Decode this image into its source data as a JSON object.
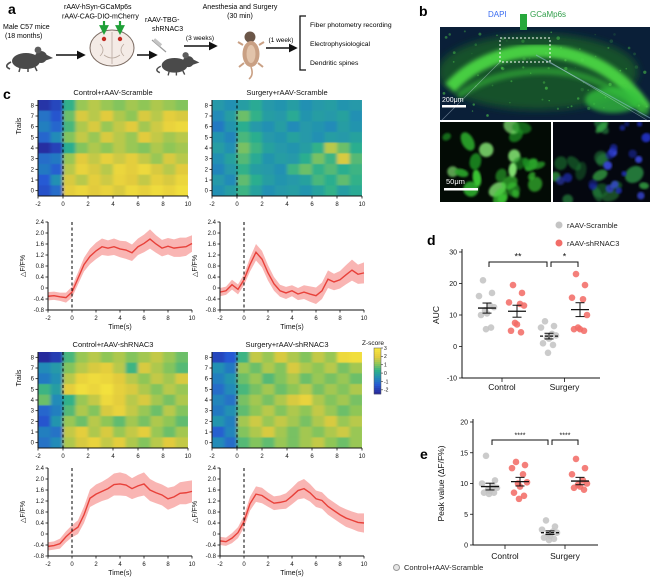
{
  "panels": {
    "a": "a",
    "b": "b",
    "c": "c",
    "d": "d",
    "e": "e"
  },
  "panel_a": {
    "subject_line1": "Male C57 mice",
    "subject_line2": "(18 months)",
    "virus1": "rAAV-hSyn-GCaMp6s",
    "virus2": "rAAV-CAG-DIO-mCherry",
    "virus3_line1": "rAAV-TBG-",
    "virus3_line2": "shRNAC3",
    "surgery_line1": "Anesthesia and Surgery",
    "surgery_line2": "(30 min)",
    "interval1": "(3 weeks)",
    "interval2": "(1 week)",
    "outcome1": "Fiber photometry recording",
    "outcome2": "Electrophysiological",
    "outcome3": "Dendritic spines"
  },
  "panel_b": {
    "dapi": "DAPI",
    "gcamp": "GCaMp6s",
    "scale_main": "200μm",
    "scale_inset": "50μm",
    "dapi_color": "#3a6cf0",
    "gcamp_color": "#2f9e49"
  },
  "bottom_legend": {
    "label": "Control+rAAV-Scramble"
  },
  "chart_data": [
    {
      "id": "hm1",
      "type": "heatmap",
      "title": "Control+rAAV-Scramble",
      "ylabel": "Trails",
      "x_range": [
        -2,
        10
      ],
      "xticks": [
        -2,
        0,
        2,
        4,
        6,
        8,
        10
      ],
      "yticks": [
        0,
        1,
        2,
        3,
        4,
        5,
        6,
        7,
        8
      ],
      "event_line_x": 0,
      "matrix": [
        [
          -2.2,
          -1.8,
          0.3,
          1.2,
          1.5,
          1.2,
          1.0,
          1.3,
          1.1,
          1.4,
          1.2,
          1.0
        ],
        [
          -1.0,
          -1.5,
          0.8,
          1.8,
          1.5,
          1.9,
          1.4,
          1.1,
          1.8,
          1.5,
          2.0,
          1.8
        ],
        [
          -0.8,
          -1.2,
          0.5,
          1.4,
          1.8,
          1.2,
          1.6,
          1.9,
          1.3,
          1.7,
          2.2,
          2.4
        ],
        [
          -1.2,
          -0.6,
          1.0,
          1.6,
          1.2,
          1.8,
          1.5,
          1.2,
          1.9,
          1.6,
          1.3,
          1.5
        ],
        [
          -2.3,
          -1.9,
          0.2,
          1.0,
          1.4,
          1.1,
          1.5,
          1.2,
          1.0,
          1.4,
          1.1,
          1.3
        ],
        [
          -1.1,
          -0.9,
          1.2,
          1.9,
          1.6,
          2.1,
          1.7,
          2.0,
          1.6,
          1.2,
          1.8,
          1.5
        ],
        [
          -0.9,
          -1.3,
          1.5,
          2.2,
          1.8,
          1.5,
          2.3,
          2.0,
          2.4,
          1.8,
          1.5,
          1.9
        ],
        [
          -1.4,
          -0.5,
          1.8,
          1.5,
          2.0,
          1.7,
          2.2,
          1.9,
          1.6,
          2.1,
          1.8,
          2.3
        ],
        [
          -1.6,
          -1.1,
          2.0,
          2.3,
          1.9,
          2.2,
          1.8,
          2.4,
          2.1,
          2.5,
          2.2,
          2.6
        ]
      ]
    },
    {
      "id": "hm2",
      "type": "heatmap",
      "title": "Surgery+rAAV-Scramble",
      "ylabel": "",
      "x_range": [
        -2,
        10
      ],
      "xticks": [
        -2,
        0,
        2,
        4,
        6,
        8,
        10
      ],
      "yticks": [
        0,
        1,
        2,
        3,
        4,
        5,
        6,
        7,
        8
      ],
      "event_line_x": 0,
      "matrix": [
        [
          -0.3,
          -0.5,
          -0.2,
          0.1,
          -0.3,
          -0.4,
          -0.2,
          -0.5,
          -0.3,
          -0.2,
          -0.4,
          -0.3
        ],
        [
          -0.6,
          -0.2,
          0.8,
          0.3,
          -0.2,
          -0.3,
          0.1,
          -0.4,
          -0.2,
          -0.3,
          -0.1,
          -0.5
        ],
        [
          -0.9,
          -0.4,
          0.2,
          -0.3,
          -0.5,
          -0.2,
          -0.6,
          -0.3,
          -0.4,
          -0.6,
          -0.2,
          -0.4
        ],
        [
          -0.4,
          -0.7,
          0.5,
          0.2,
          -0.3,
          -0.4,
          -0.1,
          -0.3,
          -0.5,
          -0.2,
          -0.3,
          -0.1
        ],
        [
          -0.2,
          -0.5,
          0.9,
          0.4,
          -0.1,
          -0.3,
          -0.4,
          -0.2,
          0.3,
          1.5,
          0.8,
          0.2
        ],
        [
          -0.5,
          -0.1,
          0.6,
          0.1,
          -0.4,
          -0.2,
          -0.3,
          0.2,
          0.9,
          0.4,
          1.8,
          0.6
        ],
        [
          -0.7,
          -0.3,
          0.3,
          -0.2,
          -0.3,
          -0.5,
          0.4,
          0.8,
          0.3,
          0.6,
          0.2,
          0.4
        ],
        [
          -0.3,
          -0.6,
          0.7,
          0.2,
          -0.2,
          -0.4,
          -0.3,
          -0.1,
          0.5,
          0.2,
          0.7,
          0.3
        ],
        [
          -0.5,
          -0.2,
          0.4,
          -0.1,
          -0.5,
          -0.3,
          -0.2,
          -0.4,
          -0.1,
          0.3,
          -0.2,
          0.1
        ]
      ]
    },
    {
      "id": "hm3",
      "type": "heatmap",
      "title": "Control+rAAV-shRNAC3",
      "ylabel": "Trails",
      "x_range": [
        -2,
        10
      ],
      "xticks": [
        -2,
        0,
        2,
        4,
        6,
        8,
        10
      ],
      "yticks": [
        0,
        1,
        2,
        3,
        4,
        5,
        6,
        7,
        8
      ],
      "event_line_x": 0,
      "matrix": [
        [
          -2.4,
          -2.0,
          0.5,
          1.2,
          1.5,
          1.1,
          1.4,
          1.0,
          1.3,
          1.6,
          1.2,
          0.8
        ],
        [
          -0.6,
          -0.3,
          1.0,
          1.5,
          1.8,
          2.0,
          1.5,
          0.4,
          1.8,
          1.4,
          1.0,
          0.6
        ],
        [
          -0.9,
          -0.5,
          1.5,
          2.2,
          2.5,
          2.3,
          1.9,
          1.5,
          1.1,
          1.6,
          1.3,
          1.8
        ],
        [
          0.4,
          -0.2,
          2.0,
          2.6,
          2.3,
          2.7,
          2.1,
          1.8,
          1.4,
          1.0,
          1.5,
          1.2
        ],
        [
          0.8,
          -0.6,
          0.3,
          1.2,
          1.6,
          2.4,
          2.0,
          1.5,
          1.8,
          1.3,
          0.9,
          1.4
        ],
        [
          -1.2,
          -0.8,
          0.6,
          1.4,
          1.0,
          1.8,
          2.2,
          1.6,
          1.2,
          0.8,
          1.5,
          1.0
        ],
        [
          -1.5,
          -0.4,
          1.2,
          0.8,
          1.5,
          1.1,
          0.7,
          1.3,
          0.9,
          1.4,
          1.1,
          0.7
        ],
        [
          -0.8,
          -1.0,
          1.6,
          2.0,
          1.4,
          1.8,
          1.2,
          1.6,
          2.0,
          1.2,
          0.8,
          1.3
        ],
        [
          -1.0,
          -0.6,
          1.4,
          1.8,
          2.2,
          1.6,
          2.0,
          1.4,
          1.0,
          1.5,
          1.9,
          1.6
        ]
      ]
    },
    {
      "id": "hm4",
      "type": "heatmap",
      "title": "Surgery+rAAV-shRNAC3",
      "ylabel": "",
      "x_range": [
        -2,
        10
      ],
      "xticks": [
        -2,
        0,
        2,
        4,
        6,
        8,
        10
      ],
      "yticks": [
        0,
        1,
        2,
        3,
        4,
        5,
        6,
        7,
        8
      ],
      "event_line_x": 0,
      "colorbar": {
        "label": "Z-score",
        "ticks": [
          3,
          2,
          1,
          0,
          -1,
          -2
        ]
      },
      "matrix": [
        [
          -1.8,
          -1.4,
          0.4,
          1.6,
          1.2,
          1.8,
          1.4,
          1.0,
          1.6,
          1.2,
          2.4,
          2.6
        ],
        [
          -0.5,
          -0.9,
          1.2,
          0.8,
          1.4,
          1.0,
          1.8,
          1.4,
          1.1,
          1.5,
          0.9,
          1.3
        ],
        [
          -0.8,
          -0.4,
          0.8,
          1.2,
          0.6,
          1.0,
          1.4,
          0.8,
          1.2,
          0.9,
          1.2,
          0.8
        ],
        [
          -1.1,
          -0.6,
          0.5,
          0.9,
          1.3,
          0.8,
          1.1,
          1.5,
          0.9,
          1.3,
          1.0,
          1.4
        ],
        [
          -0.7,
          -1.0,
          0.9,
          1.3,
          0.9,
          1.4,
          1.8,
          2.2,
          1.4,
          1.0,
          1.3,
          0.9
        ],
        [
          -0.9,
          -0.5,
          0.7,
          1.1,
          1.5,
          1.0,
          1.4,
          1.1,
          1.6,
          1.2,
          0.8,
          1.1
        ],
        [
          -0.4,
          -0.8,
          1.3,
          1.7,
          1.2,
          1.6,
          1.3,
          0.9,
          1.4,
          1.8,
          1.2,
          1.5
        ],
        [
          -1.3,
          -0.7,
          1.0,
          1.4,
          1.8,
          1.3,
          0.9,
          1.3,
          1.0,
          1.4,
          1.7,
          1.2
        ],
        [
          -0.6,
          -1.1,
          0.6,
          1.0,
          0.7,
          1.2,
          0.9,
          1.3,
          1.6,
          1.1,
          0.8,
          1.2
        ]
      ]
    },
    {
      "id": "ln1",
      "type": "line",
      "xlabel": "Time(s)",
      "ylabel": "△F/F%",
      "ylim": [
        -0.8,
        2.4
      ],
      "yticks": [
        "-0.8",
        "-0.4",
        "0",
        "0.4",
        "0.8",
        "1.2",
        "1.6",
        "2.0",
        "2.4"
      ],
      "xticks": [
        -2,
        0,
        2,
        4,
        6,
        8,
        10
      ],
      "x_start": -2,
      "x_step": 0.5,
      "line_color": "#e8413a",
      "band_color": "#f7a2a0",
      "y": [
        -0.3,
        -0.28,
        -0.32,
        -0.35,
        -0.15,
        0.35,
        0.85,
        1.15,
        1.35,
        1.5,
        1.45,
        1.5,
        1.42,
        1.38,
        1.28,
        1.5,
        1.62,
        1.78,
        1.6,
        1.45,
        1.52,
        1.45,
        1.48,
        1.5,
        1.62
      ],
      "err": [
        0.15,
        0.15,
        0.15,
        0.18,
        0.2,
        0.22,
        0.25,
        0.28,
        0.3,
        0.3,
        0.28,
        0.3,
        0.3,
        0.32,
        0.3,
        0.3,
        0.32,
        0.35,
        0.32,
        0.3,
        0.3,
        0.32,
        0.35,
        0.33,
        0.3
      ]
    },
    {
      "id": "ln2",
      "type": "line",
      "xlabel": "Time(s)",
      "ylabel": "△F/F%",
      "ylim": [
        -0.8,
        2.4
      ],
      "yticks": [
        "-0.8",
        "-0.4",
        "0",
        "0.4",
        "0.8",
        "1.2",
        "1.6",
        "2.0",
        "2.4"
      ],
      "xticks": [
        -2,
        0,
        2,
        4,
        6,
        8,
        10
      ],
      "x_start": -2,
      "x_step": 0.5,
      "line_color": "#e8413a",
      "band_color": "#f7a2a0",
      "y": [
        -0.15,
        -0.1,
        0.12,
        -0.05,
        0.3,
        0.85,
        1.3,
        1.05,
        0.55,
        0.15,
        -0.1,
        -0.18,
        -0.1,
        -0.22,
        -0.15,
        -0.22,
        -0.28,
        -0.1,
        0.32,
        0.22,
        0.3,
        0.48,
        0.65,
        0.5,
        0.55
      ],
      "err": [
        0.15,
        0.15,
        0.18,
        0.18,
        0.2,
        0.25,
        0.3,
        0.3,
        0.28,
        0.25,
        0.22,
        0.22,
        0.2,
        0.22,
        0.25,
        0.28,
        0.3,
        0.3,
        0.32,
        0.3,
        0.32,
        0.35,
        0.38,
        0.35,
        0.38
      ]
    },
    {
      "id": "ln3",
      "type": "line",
      "xlabel": "Time(s)",
      "ylabel": "△F/F%",
      "ylim": [
        -0.8,
        2.4
      ],
      "yticks": [
        "-0.8",
        "-0.4",
        "0",
        "0.4",
        "0.8",
        "1.2",
        "1.6",
        "2.0",
        "2.4"
      ],
      "xticks": [
        -2,
        0,
        2,
        4,
        6,
        8,
        10
      ],
      "x_start": -2,
      "x_step": 0.5,
      "line_color": "#e8413a",
      "band_color": "#f7a2a0",
      "y": [
        -0.45,
        -0.42,
        -0.35,
        -0.1,
        0.1,
        0.25,
        0.7,
        1.3,
        1.45,
        1.55,
        1.65,
        1.8,
        1.82,
        1.78,
        1.65,
        1.75,
        1.82,
        1.6,
        1.5,
        1.42,
        1.28,
        1.35,
        1.48,
        1.5,
        1.55
      ],
      "err": [
        0.15,
        0.15,
        0.18,
        0.2,
        0.22,
        0.25,
        0.3,
        0.32,
        0.35,
        0.35,
        0.38,
        0.4,
        0.42,
        0.4,
        0.38,
        0.4,
        0.42,
        0.4,
        0.38,
        0.38,
        0.4,
        0.38,
        0.4,
        0.42,
        0.4
      ]
    },
    {
      "id": "ln4",
      "type": "line",
      "xlabel": "Time(s)",
      "ylabel": "△F/F%",
      "ylim": [
        -0.8,
        2.4
      ],
      "yticks": [
        "-0.8",
        "-0.4",
        "0",
        "0.4",
        "0.8",
        "1.2",
        "1.6",
        "2.0",
        "2.4"
      ],
      "xticks": [
        -2,
        0,
        2,
        4,
        6,
        8,
        10
      ],
      "x_start": -2,
      "x_step": 0.5,
      "line_color": "#e8413a",
      "band_color": "#f7a2a0",
      "y": [
        -0.25,
        -0.28,
        -0.15,
        0.05,
        0.45,
        1.1,
        1.45,
        1.4,
        1.25,
        1.12,
        1.15,
        1.2,
        1.38,
        1.58,
        1.65,
        1.5,
        1.28,
        1.22,
        1.0,
        0.85,
        0.7,
        0.58,
        0.5,
        0.42,
        0.4
      ],
      "err": [
        0.15,
        0.15,
        0.18,
        0.2,
        0.22,
        0.25,
        0.28,
        0.28,
        0.26,
        0.25,
        0.25,
        0.28,
        0.3,
        0.32,
        0.35,
        0.32,
        0.3,
        0.3,
        0.3,
        0.3,
        0.3,
        0.32,
        0.32,
        0.33,
        0.35
      ]
    },
    {
      "id": "sc_d",
      "type": "scatter",
      "ylabel": "AUC",
      "ylim": [
        -10,
        30
      ],
      "yticks": [
        30,
        20,
        10,
        0,
        -10
      ],
      "categories": [
        "Control",
        "Surgery"
      ],
      "columns": [
        "Control+rAAV-Scramble",
        "Control+rAAV-shRNAC3",
        "Surgery+rAAV-Scramble",
        "Surgery+rAAV-shRNAC3"
      ],
      "point_colors": [
        "#c4c4c4",
        "#f26d68",
        "#c4c4c4",
        "#f26d68"
      ],
      "points": [
        [
          21,
          17,
          16,
          13,
          12.5,
          11.5,
          10.5,
          10,
          6,
          5.5
        ],
        [
          19.5,
          17,
          14,
          13.5,
          13,
          7.5,
          7,
          5,
          4.5
        ],
        [
          8,
          6.5,
          6,
          4,
          3.5,
          3,
          2.5,
          1,
          0.5,
          -2
        ],
        [
          23,
          19.5,
          15.5,
          15,
          10,
          6,
          5.5,
          5.5,
          5
        ]
      ],
      "means": [
        12.2,
        11.2,
        3.3,
        11.7
      ],
      "sems": [
        1.6,
        1.9,
        0.9,
        2.2
      ],
      "dashed_mean_cols": [
        2
      ],
      "significance": [
        {
          "cols": [
            0,
            2
          ],
          "label": "**"
        },
        {
          "cols": [
            2,
            3
          ],
          "label": "*"
        }
      ],
      "legend": [
        {
          "label": "rAAV-Scramble",
          "color": "#c4c4c4"
        },
        {
          "label": "rAAV-shRNAC3",
          "color": "#f26d68"
        }
      ]
    },
    {
      "id": "sc_e",
      "type": "scatter",
      "ylabel": "Peak value (ΔF/F%)",
      "ylim": [
        0,
        20
      ],
      "yticks": [
        20,
        15,
        10,
        5,
        0
      ],
      "categories": [
        "Control",
        "Surgery"
      ],
      "columns": [
        "Control+rAAV-Scramble",
        "Control+rAAV-shRNAC3",
        "Surgery+rAAV-Scramble",
        "Surgery+rAAV-shRNAC3"
      ],
      "point_colors": [
        "#c4c4c4",
        "#f26d68",
        "#c4c4c4",
        "#f26d68"
      ],
      "points": [
        [
          14.5,
          10.5,
          10,
          9.5,
          9.3,
          9,
          8.8,
          8.5,
          8.5,
          8.3
        ],
        [
          13.5,
          13,
          12.5,
          11.5,
          10.2,
          10,
          9.5,
          8.5,
          8,
          7.5
        ],
        [
          4,
          3,
          2.5,
          2.2,
          2,
          1.8,
          1.5,
          1.2,
          1,
          0.8
        ],
        [
          14,
          12.5,
          11.5,
          10.5,
          10,
          9.8,
          9.5,
          9.3,
          9
        ]
      ],
      "means": [
        9.5,
        10.3,
        2.0,
        10.4
      ],
      "sems": [
        0.55,
        0.7,
        0.3,
        0.6
      ],
      "dashed_mean_cols": [
        2
      ],
      "significance": [
        {
          "cols": [
            0,
            2
          ],
          "label": "****"
        },
        {
          "cols": [
            2,
            3
          ],
          "label": "****"
        }
      ]
    }
  ]
}
